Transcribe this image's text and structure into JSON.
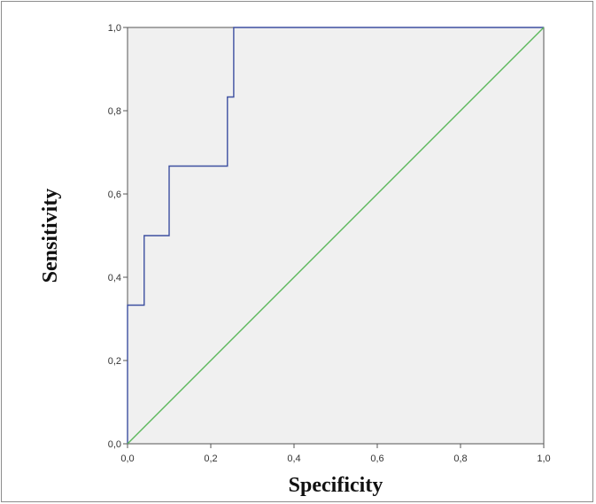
{
  "chart_data": {
    "type": "line",
    "title": "",
    "xlabel": "Specificity",
    "ylabel": "Sensitivity",
    "xlim": [
      0,
      1
    ],
    "ylim": [
      0,
      1
    ],
    "x_ticks": [
      "0,0",
      "0,2",
      "0,4",
      "0,6",
      "0,8",
      "1,0"
    ],
    "y_ticks": [
      "0,0",
      "0,2",
      "0,4",
      "0,6",
      "0,8",
      "1,0"
    ],
    "grid": false,
    "legend": "none",
    "background_color": "#f0f0f0",
    "series": [
      {
        "color": "#3d4fa0",
        "step": true,
        "x": [
          0.0,
          0.0,
          0.04,
          0.04,
          0.1,
          0.1,
          0.24,
          0.24,
          0.255,
          0.255,
          1.0
        ],
        "y": [
          0.0,
          0.333,
          0.333,
          0.5,
          0.5,
          0.667,
          0.667,
          0.833,
          0.833,
          1.0,
          1.0
        ]
      },
      {
        "color": "#5cb85c",
        "step": false,
        "x": [
          0.0,
          1.0
        ],
        "y": [
          0.0,
          1.0
        ]
      }
    ]
  }
}
